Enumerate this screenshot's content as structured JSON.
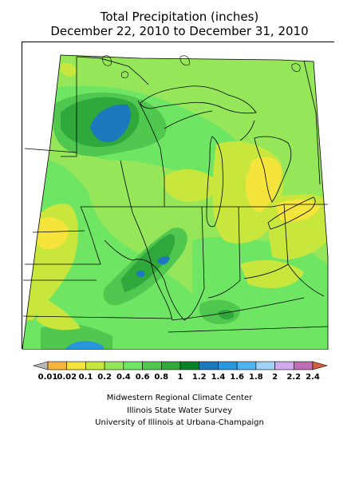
{
  "title": {
    "line1": "Total Precipitation (inches)",
    "line2": "December 22, 2010 to December 31, 2010"
  },
  "legend": {
    "unit": "inches",
    "labels": [
      "0.01",
      "0.02",
      "0.1",
      "0.2",
      "0.4",
      "0.6",
      "0.8",
      "1",
      "1.2",
      "1.4",
      "1.6",
      "1.8",
      "2",
      "2.2",
      "2.4"
    ],
    "colors": [
      "#b9b9b9",
      "#f5b43c",
      "#f5e43c",
      "#c8e63c",
      "#96e65a",
      "#6ee664",
      "#50c850",
      "#30a83c",
      "#0a8228",
      "#1e78be",
      "#2896dc",
      "#50b4f0",
      "#a0d2f5",
      "#d2aaf0",
      "#be6eb4",
      "#d2603c"
    ]
  },
  "credits": {
    "line1": "Midwestern Regional Climate Center",
    "line2": "Illinois State Water Survey",
    "line3": "University of Illinois at Urbana-Champaign"
  }
}
